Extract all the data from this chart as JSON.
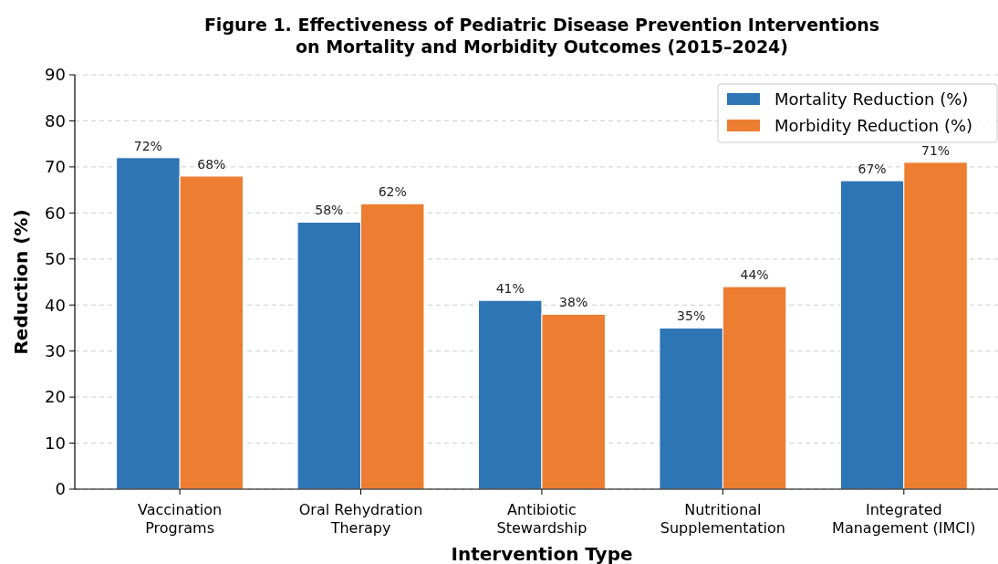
{
  "chart_data": {
    "type": "bar",
    "title": "Figure 1. Effectiveness of Pediatric Disease Prevention Interventions\non Mortality and Morbidity Outcomes (2015–2024)",
    "xlabel": "Intervention Type",
    "ylabel": "Reduction (%)",
    "categories": [
      "Vaccination\nPrograms",
      "Oral Rehydration\nTherapy",
      "Antibiotic\nStewardship",
      "Nutritional\nSupplementation",
      "Integrated\nManagement (IMCI)"
    ],
    "series": [
      {
        "name": "Mortality Reduction (%)",
        "color": "#2e75b6",
        "values": [
          72,
          58,
          41,
          35,
          67
        ],
        "value_labels": [
          "72%",
          "58%",
          "41%",
          "35%",
          "67%"
        ]
      },
      {
        "name": "Morbidity Reduction (%)",
        "color": "#ed7d31",
        "values": [
          68,
          62,
          38,
          44,
          71
        ],
        "value_labels": [
          "68%",
          "62%",
          "38%",
          "44%",
          "71%"
        ]
      }
    ],
    "ylim": [
      0,
      90
    ],
    "yticks": [
      0,
      10,
      20,
      30,
      40,
      50,
      60,
      70,
      80,
      90
    ],
    "grid": "y",
    "legend": "top right"
  }
}
